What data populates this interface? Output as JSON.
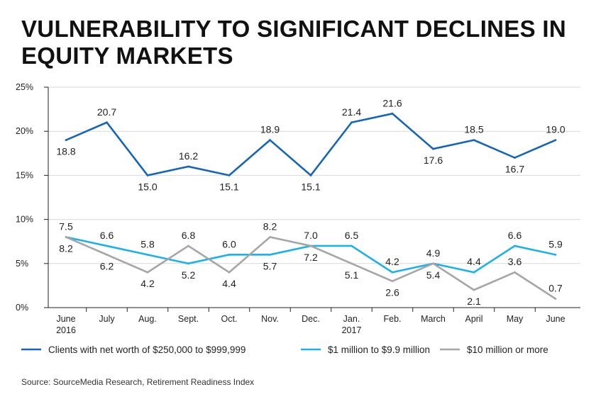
{
  "title": "VULNERABILITY TO SIGNIFICANT DECLINES IN EQUITY MARKETS",
  "source": "Source: SourceMedia Research, Retirement Readiness Index",
  "colors": {
    "series1": "#1565b8",
    "series2": "#1cb1ea",
    "series3": "#a6a6a6",
    "axis": "#222222",
    "grid": "#d9d9d9"
  },
  "chart_data": {
    "type": "line",
    "title": "VULNERABILITY TO SIGNIFICANT DECLINES IN EQUITY MARKETS",
    "xlabel": "",
    "ylabel": "",
    "ylim": [
      0,
      25
    ],
    "y_ticks": [
      {
        "value": 0,
        "label": "0%"
      },
      {
        "value": 5,
        "label": "5%"
      },
      {
        "value": 10,
        "label": "10%"
      },
      {
        "value": 15,
        "label": "15%"
      },
      {
        "value": 20,
        "label": "20%"
      },
      {
        "value": 25,
        "label": "25%"
      }
    ],
    "categories": [
      [
        "June",
        "2016"
      ],
      [
        "July"
      ],
      [
        "Aug."
      ],
      [
        "Sept."
      ],
      [
        "Oct."
      ],
      [
        "Nov."
      ],
      [
        "Dec."
      ],
      [
        "Jan.",
        "2017"
      ],
      [
        "Feb."
      ],
      [
        "March"
      ],
      [
        "April"
      ],
      [
        "May"
      ],
      [
        "June"
      ]
    ],
    "legend_position": "bottom",
    "series": [
      {
        "name": "Clients with net worth of $250,000 to $999,999",
        "color_key": "series1",
        "values": [
          19,
          21,
          15,
          16,
          15,
          19,
          15,
          21,
          22,
          18,
          19,
          17,
          19
        ],
        "labels": [
          "18.8",
          "20.7",
          "15.0",
          "16.2",
          "15.1",
          "18.9",
          "15.1",
          "21.4",
          "21.6",
          "17.6",
          "18.5",
          "16.7",
          "19.0"
        ],
        "label_pos": [
          "below",
          "above",
          "below",
          "above",
          "below",
          "above",
          "below",
          "above",
          "above",
          "below",
          "above",
          "below",
          "above"
        ]
      },
      {
        "name": "$1 million to $9.9 million",
        "color_key": "series2",
        "values": [
          8,
          7,
          6,
          5,
          6,
          6,
          7,
          7,
          4,
          5,
          4,
          7,
          6
        ],
        "labels": [
          "7.5",
          "6.6",
          "5.8",
          "5.2",
          "6.0",
          "5.7",
          "7.0",
          "6.5",
          "4.2",
          "4.9",
          "4.4",
          "6.6",
          "5.9"
        ],
        "label_pos": [
          "above",
          "above",
          "above",
          "below",
          "above",
          "below",
          "above",
          "above",
          "above",
          "above",
          "above",
          "above",
          "above"
        ]
      },
      {
        "name": "$10 million or more",
        "color_key": "series3",
        "values": [
          8,
          6,
          4,
          7,
          4,
          8,
          7,
          5,
          3,
          5,
          2,
          4,
          1
        ],
        "labels": [
          "8.2",
          "6.2",
          "4.2",
          "6.8",
          "4.4",
          "8.2",
          "7.2",
          "5.1",
          "2.6",
          "5.4",
          "2.1",
          "3.6",
          "0.7"
        ],
        "label_pos": [
          "below",
          "below",
          "below",
          "above",
          "below",
          "above",
          "below",
          "below",
          "below",
          "below",
          "below",
          "above",
          "above"
        ]
      }
    ]
  }
}
